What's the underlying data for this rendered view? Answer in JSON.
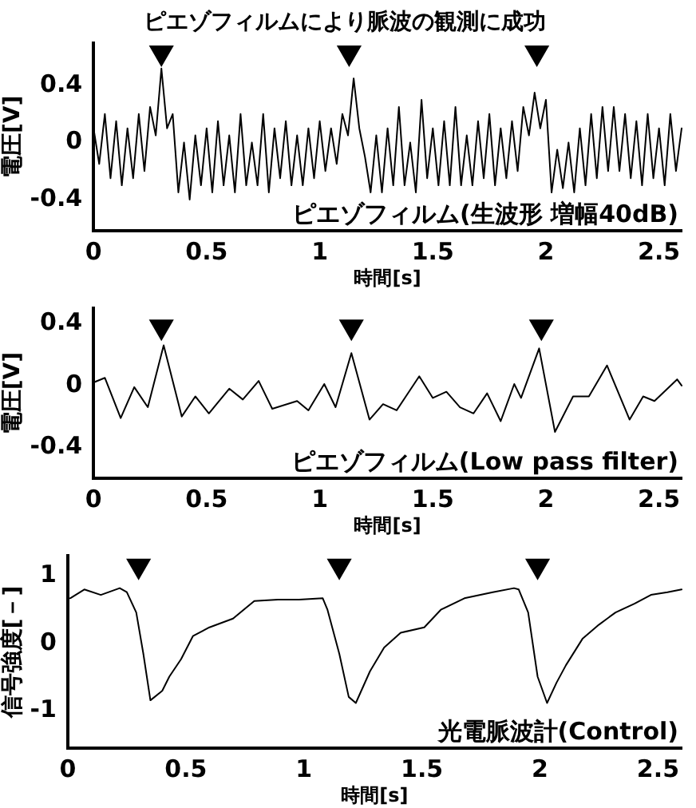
{
  "chart_data": [
    {
      "type": "line",
      "title": "ピエゾフィルムにより脈波の観測に成功",
      "xlabel": "時間[s]",
      "ylabel": "電圧[V]",
      "xlim": [
        0,
        2.6
      ],
      "xticks": [
        0,
        0.5,
        1,
        1.5,
        2,
        2.5
      ],
      "ylim": [
        -0.62,
        0.7
      ],
      "yticks": [
        -0.4,
        0,
        0.4
      ],
      "grid": false,
      "legend": false,
      "annotations": [
        "ピエゾフィルム(生波形 増幅40dB)"
      ],
      "series": [
        {
          "type": "line",
          "marker": "none",
          "color": "#000000",
          "x": [
            0,
            0.025,
            0.05,
            0.075,
            0.1,
            0.125,
            0.15,
            0.175,
            0.2,
            0.225,
            0.25,
            0.275,
            0.3,
            0.325,
            0.35,
            0.375,
            0.4,
            0.425,
            0.45,
            0.475,
            0.5,
            0.525,
            0.55,
            0.575,
            0.6,
            0.625,
            0.65,
            0.675,
            0.7,
            0.725,
            0.75,
            0.775,
            0.8,
            0.825,
            0.85,
            0.875,
            0.9,
            0.925,
            0.95,
            0.975,
            1,
            1.025,
            1.05,
            1.075,
            1.1,
            1.125,
            1.15,
            1.175,
            1.2,
            1.225,
            1.25,
            1.275,
            1.3,
            1.325,
            1.35,
            1.375,
            1.4,
            1.425,
            1.45,
            1.475,
            1.5,
            1.525,
            1.55,
            1.575,
            1.6,
            1.625,
            1.65,
            1.675,
            1.7,
            1.725,
            1.75,
            1.775,
            1.8,
            1.825,
            1.85,
            1.875,
            1.9,
            1.925,
            1.95,
            1.975,
            2,
            2.025,
            2.05,
            2.075,
            2.1,
            2.125,
            2.15,
            2.175,
            2.2,
            2.225,
            2.25,
            2.275,
            2.3,
            2.325,
            2.35,
            2.375,
            2.4,
            2.425,
            2.45,
            2.475,
            2.5,
            2.525,
            2.55,
            2.575,
            2.6
          ],
          "values": [
            0.1,
            -0.15,
            0.2,
            -0.25,
            0.15,
            -0.3,
            0.1,
            -0.25,
            0.2,
            -0.2,
            0.25,
            0.05,
            0.52,
            0.1,
            0.2,
            -0.35,
            0,
            -0.4,
            0.05,
            -0.3,
            0.1,
            -0.35,
            0.15,
            -0.3,
            0.05,
            -0.35,
            0.2,
            -0.3,
            0,
            -0.3,
            0.2,
            -0.35,
            0.1,
            -0.25,
            0.15,
            -0.3,
            0.05,
            -0.3,
            0.1,
            -0.25,
            0.15,
            -0.2,
            0.1,
            -0.15,
            0.2,
            0.05,
            0.45,
            0.1,
            -0.1,
            -0.35,
            0.05,
            -0.35,
            0.1,
            -0.3,
            0.25,
            -0.3,
            0,
            -0.35,
            0.3,
            -0.25,
            0.1,
            -0.3,
            0.15,
            -0.3,
            0.25,
            -0.3,
            0.05,
            -0.3,
            0.15,
            -0.25,
            0.2,
            -0.3,
            0.1,
            -0.25,
            0.15,
            -0.2,
            0.25,
            0.05,
            0.35,
            0.1,
            0.3,
            -0.35,
            -0.05,
            -0.32,
            0,
            -0.35,
            0.1,
            -0.3,
            0.2,
            -0.25,
            0.25,
            -0.2,
            0.25,
            -0.2,
            0.2,
            -0.25,
            0.15,
            -0.3,
            0.2,
            -0.25,
            0.1,
            -0.3,
            0.2,
            -0.2,
            0.1
          ]
        },
        {
          "type": "scatter",
          "marker": "triangle",
          "color": "#000000",
          "x": [
            0.3,
            1.13,
            1.96
          ],
          "values": [
            0.63,
            0.63,
            0.63
          ]
        }
      ]
    },
    {
      "type": "line",
      "xlabel": "時間[s]",
      "ylabel": "電圧[V]",
      "xlim": [
        0,
        2.6
      ],
      "xticks": [
        0,
        0.5,
        1,
        1.5,
        2,
        2.5
      ],
      "ylim": [
        -0.6,
        0.5
      ],
      "yticks": [
        -0.4,
        0,
        0.4
      ],
      "grid": false,
      "legend": false,
      "annotations": [
        "ピエゾフィルム(Low pass filter)"
      ],
      "series": [
        {
          "type": "line",
          "marker": "none",
          "color": "#000000",
          "x": [
            0,
            0.05,
            0.12,
            0.18,
            0.24,
            0.31,
            0.39,
            0.45,
            0.51,
            0.6,
            0.66,
            0.73,
            0.79,
            0.9,
            0.95,
            1.02,
            1.07,
            1.14,
            1.22,
            1.28,
            1.34,
            1.44,
            1.5,
            1.56,
            1.62,
            1.68,
            1.74,
            1.8,
            1.86,
            1.89,
            1.97,
            2.04,
            2.12,
            2.19,
            2.27,
            2.37,
            2.43,
            2.48,
            2.58,
            2.6
          ],
          "values": [
            0.02,
            0.05,
            -0.21,
            -0.01,
            -0.14,
            0.26,
            -0.2,
            -0.07,
            -0.18,
            -0.02,
            -0.09,
            0.03,
            -0.15,
            -0.1,
            -0.16,
            0.01,
            -0.14,
            0.21,
            -0.22,
            -0.12,
            -0.16,
            0.06,
            -0.08,
            -0.04,
            -0.14,
            -0.18,
            -0.05,
            -0.23,
            0.01,
            -0.08,
            0.24,
            -0.3,
            -0.07,
            -0.07,
            0.13,
            -0.22,
            -0.07,
            -0.1,
            0.04,
            0
          ]
        },
        {
          "type": "scatter",
          "marker": "triangle",
          "color": "#000000",
          "x": [
            0.3,
            1.14,
            1.98
          ],
          "values": [
            0.38,
            0.38,
            0.38
          ]
        }
      ]
    },
    {
      "type": "line",
      "xlabel": "時間[s]",
      "ylabel": "信号強度[－]",
      "xlim": [
        0,
        2.6
      ],
      "xticks": [
        0,
        0.5,
        1,
        1.5,
        2,
        2.5
      ],
      "ylim": [
        -1.55,
        1.3
      ],
      "yticks": [
        -1,
        0,
        1
      ],
      "grid": false,
      "legend": false,
      "annotations": [
        "光電脈波計(Control)"
      ],
      "series": [
        {
          "type": "line",
          "marker": "none",
          "color": "#000000",
          "x": [
            0.01,
            0.07,
            0.14,
            0.22,
            0.25,
            0.29,
            0.32,
            0.35,
            0.4,
            0.43,
            0.48,
            0.53,
            0.6,
            0.7,
            0.79,
            0.89,
            0.98,
            1.08,
            1.1,
            1.15,
            1.19,
            1.22,
            1.28,
            1.34,
            1.41,
            1.51,
            1.58,
            1.68,
            1.8,
            1.89,
            1.91,
            1.95,
            1.99,
            2.03,
            2.07,
            2.11,
            2.18,
            2.25,
            2.32,
            2.4,
            2.47,
            2.54,
            2.6
          ],
          "values": [
            0.67,
            0.8,
            0.72,
            0.82,
            0.76,
            0.46,
            -0.15,
            -0.84,
            -0.7,
            -0.49,
            -0.23,
            0.11,
            0.24,
            0.37,
            0.63,
            0.65,
            0.65,
            0.67,
            0.5,
            -0.15,
            -0.79,
            -0.88,
            -0.41,
            -0.06,
            0.16,
            0.24,
            0.5,
            0.67,
            0.76,
            0.82,
            0.8,
            0.46,
            -0.49,
            -0.88,
            -0.58,
            -0.32,
            0.07,
            0.28,
            0.46,
            0.59,
            0.72,
            0.76,
            0.8
          ]
        },
        {
          "type": "scatter",
          "marker": "triangle",
          "color": "#000000",
          "x": [
            0.3,
            1.15,
            1.99
          ],
          "values": [
            1.15,
            1.15,
            1.15
          ]
        }
      ]
    }
  ]
}
